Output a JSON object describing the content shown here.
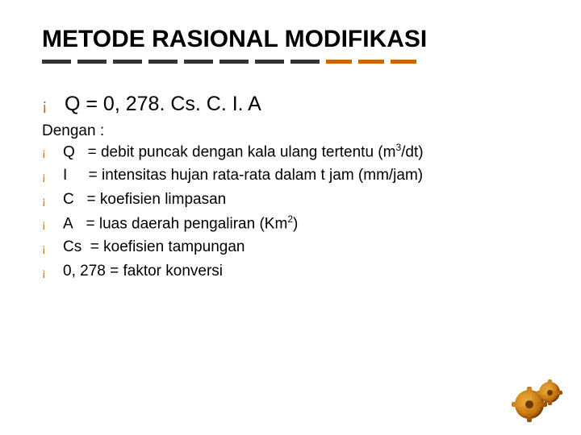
{
  "title": "METODE RASIONAL MODIFIKASI",
  "underline": {
    "dash_count": 11,
    "dark_color": "#333333",
    "orange_color": "#cc6600",
    "orange_start_index": 8
  },
  "formula": "Q = 0, 278. Cs. C. I. A",
  "dengan": "Dengan :",
  "defs": [
    {
      "html": "Q&nbsp;&nbsp;&nbsp;= debit puncak dengan kala ulang tertentu (m<sup>3</sup>/dt)"
    },
    {
      "html": "I&nbsp;&nbsp;&nbsp;&nbsp;&nbsp;= intensitas hujan rata-rata dalam t jam (mm/jam)"
    },
    {
      "html": "C&nbsp;&nbsp;&nbsp;= koefisien limpasan"
    },
    {
      "html": "A&nbsp;&nbsp;&nbsp;= luas daerah pengaliran (Km<sup>2</sup>)"
    },
    {
      "html": "Cs&nbsp;&nbsp;= koefisien tampungan"
    },
    {
      "html": "0, 278 = faktor konversi"
    }
  ],
  "bullet_color": "#cc6600",
  "gear_color_light": "#e8a838",
  "gear_color_mid": "#c77510",
  "gear_color_dark": "#8a4a00"
}
